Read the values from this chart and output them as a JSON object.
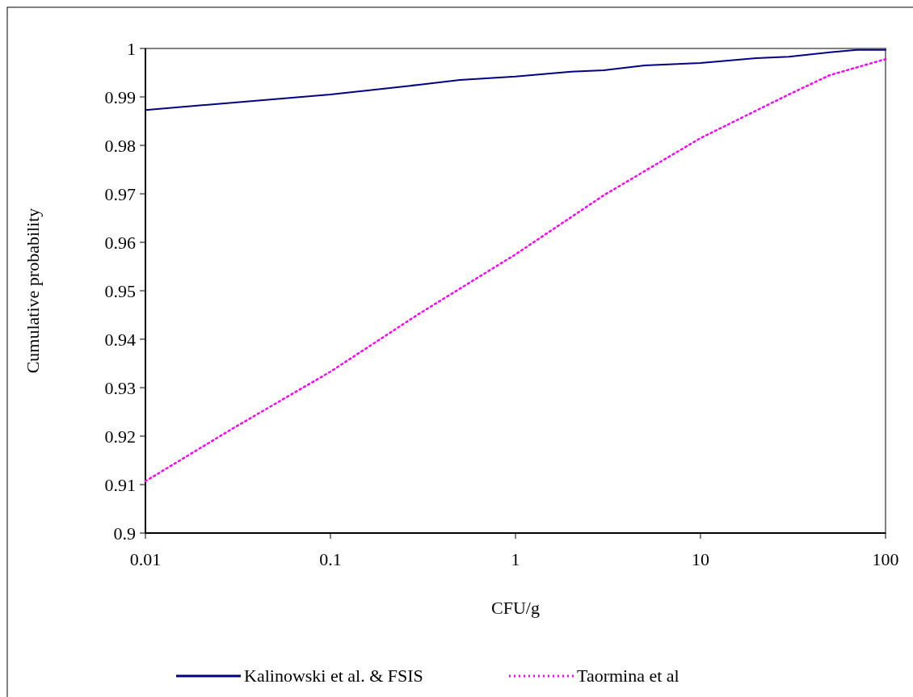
{
  "chart_data": {
    "type": "line",
    "xlabel": "CFU/g",
    "ylabel": "Cumulative probability",
    "log": "x",
    "xlim": [
      0.01,
      100
    ],
    "xticks": [
      0.01,
      0.1,
      1,
      10,
      100
    ],
    "ylim": [
      0.9,
      1
    ],
    "yticks": [
      0.9,
      0.91,
      0.92,
      0.93,
      0.94,
      0.95,
      0.96,
      0.97,
      0.98,
      0.99,
      1
    ],
    "grid": false,
    "legend": "bottom",
    "series": [
      {
        "name": "Kalinowski et al. & FSIS",
        "color": "#000080",
        "line_style": "solid",
        "x": [
          0.01,
          0.1,
          0.3,
          0.5,
          1,
          2,
          3,
          5,
          10,
          20,
          30,
          50,
          70,
          100
        ],
        "values": [
          0.9873,
          0.9905,
          0.9925,
          0.9935,
          0.9942,
          0.9952,
          0.9955,
          0.9965,
          0.997,
          0.998,
          0.9983,
          0.9992,
          0.9997,
          0.9997
        ]
      },
      {
        "name": "Taormina et al",
        "color": "#ff00ff",
        "line_style": "dotted",
        "x": [
          0.01,
          0.03,
          0.1,
          0.3,
          1,
          3,
          10,
          30,
          50,
          100
        ],
        "values": [
          0.9107,
          0.9217,
          0.9333,
          0.9452,
          0.9575,
          0.9697,
          0.9815,
          0.9905,
          0.9945,
          0.9978
        ]
      }
    ]
  }
}
